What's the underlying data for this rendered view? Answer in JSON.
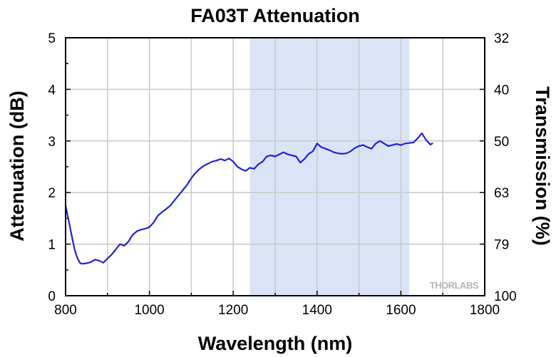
{
  "chart_data": {
    "type": "line",
    "title": "FA03T Attenuation",
    "xlabel": "Wavelength (nm)",
    "ylabel": "Attenuation (dB)",
    "y2label": "Transmission (%)",
    "xlim": [
      800,
      1800
    ],
    "ylim": [
      0,
      5
    ],
    "x_ticks": [
      "800",
      "1000",
      "1200",
      "1400",
      "1600",
      "1800"
    ],
    "y_ticks": [
      "0",
      "1",
      "2",
      "3",
      "4",
      "5"
    ],
    "y2_ticks": [
      {
        "label": "32",
        "db": 5
      },
      {
        "label": "40",
        "db": 4
      },
      {
        "label": "50",
        "db": 3
      },
      {
        "label": "63",
        "db": 2
      },
      {
        "label": "79",
        "db": 1
      },
      {
        "label": "100",
        "db": 0
      }
    ],
    "grid": true,
    "shaded_region": {
      "x": [
        1240,
        1620
      ],
      "color": "#dbe3f7"
    },
    "series": [
      {
        "color": "#1f22d6",
        "x": [
          800,
          805,
          810,
          815,
          820,
          825,
          830,
          835,
          840,
          850,
          860,
          870,
          880,
          890,
          900,
          910,
          920,
          930,
          940,
          950,
          960,
          970,
          980,
          990,
          1000,
          1010,
          1020,
          1030,
          1040,
          1050,
          1060,
          1070,
          1080,
          1090,
          1100,
          1110,
          1120,
          1130,
          1140,
          1150,
          1160,
          1170,
          1180,
          1190,
          1200,
          1210,
          1220,
          1230,
          1240,
          1250,
          1260,
          1270,
          1280,
          1290,
          1300,
          1310,
          1320,
          1330,
          1340,
          1350,
          1360,
          1370,
          1380,
          1390,
          1400,
          1410,
          1420,
          1430,
          1440,
          1450,
          1460,
          1470,
          1480,
          1490,
          1500,
          1510,
          1520,
          1530,
          1540,
          1550,
          1560,
          1570,
          1580,
          1590,
          1600,
          1610,
          1620,
          1630,
          1640,
          1650,
          1660,
          1670,
          1675
        ],
        "y": [
          1.75,
          1.55,
          1.35,
          1.15,
          0.95,
          0.8,
          0.7,
          0.63,
          0.62,
          0.63,
          0.65,
          0.7,
          0.68,
          0.64,
          0.72,
          0.8,
          0.9,
          1.0,
          0.97,
          1.05,
          1.18,
          1.25,
          1.28,
          1.3,
          1.33,
          1.42,
          1.55,
          1.62,
          1.68,
          1.75,
          1.85,
          1.95,
          2.05,
          2.15,
          2.28,
          2.38,
          2.46,
          2.52,
          2.56,
          2.6,
          2.62,
          2.65,
          2.62,
          2.66,
          2.6,
          2.5,
          2.45,
          2.42,
          2.48,
          2.46,
          2.55,
          2.6,
          2.7,
          2.72,
          2.7,
          2.74,
          2.78,
          2.74,
          2.72,
          2.7,
          2.58,
          2.65,
          2.75,
          2.8,
          2.95,
          2.88,
          2.85,
          2.82,
          2.78,
          2.76,
          2.75,
          2.76,
          2.8,
          2.86,
          2.9,
          2.92,
          2.88,
          2.85,
          2.95,
          3.0,
          2.95,
          2.9,
          2.92,
          2.94,
          2.92,
          2.95,
          2.96,
          2.97,
          3.05,
          3.15,
          3.02,
          2.93,
          2.95
        ]
      }
    ]
  },
  "logo": {
    "text": "THORLABS"
  }
}
